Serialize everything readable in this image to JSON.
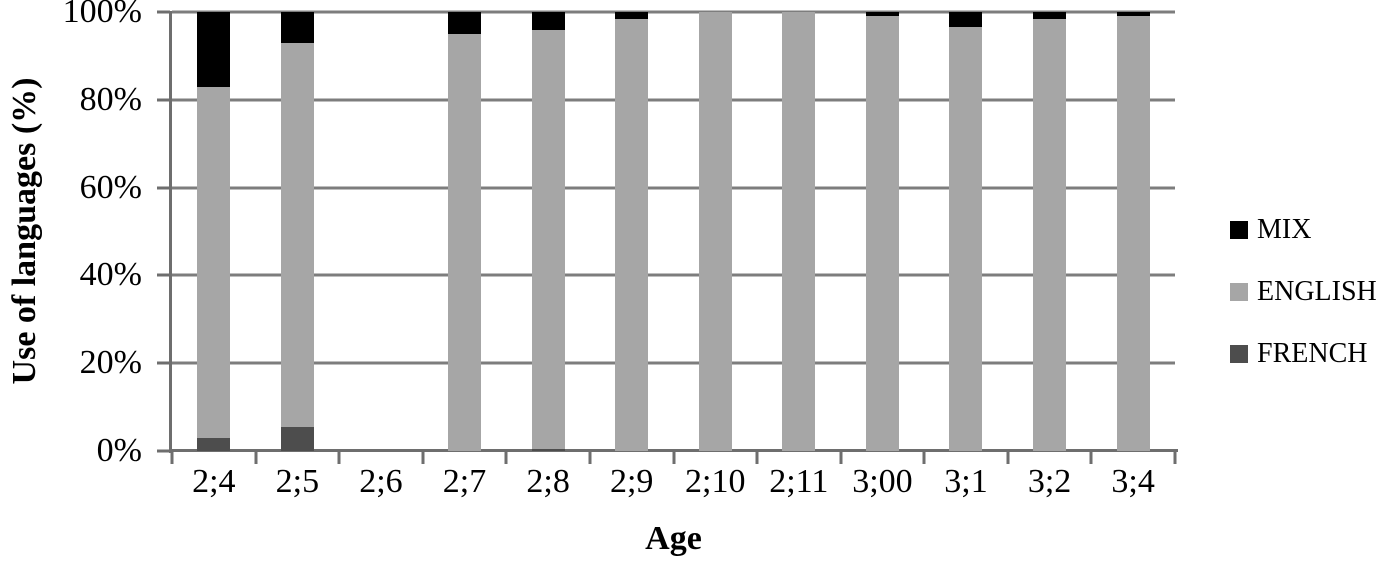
{
  "chart_data": {
    "type": "bar",
    "stacked": true,
    "title": "",
    "xlabel": "Age",
    "ylabel": "Use of languages (%)",
    "categories": [
      "2;4",
      "2;5",
      "2;6",
      "2;7",
      "2;8",
      "2;9",
      "2;10",
      "2;11",
      "3;00",
      "3;1",
      "3;2",
      "3;4"
    ],
    "series": [
      {
        "name": "MIX",
        "color": "#000000",
        "values": [
          17,
          7,
          0,
          5,
          4,
          1.5,
          0,
          0,
          1,
          3.5,
          1.5,
          1
        ]
      },
      {
        "name": "ENGLISH",
        "color": "#a6a6a6",
        "values": [
          80,
          87.5,
          0,
          95,
          95.5,
          98.5,
          100,
          100,
          99,
          96.5,
          98.5,
          99
        ]
      },
      {
        "name": "FRENCH",
        "color": "#4d4d4d",
        "values": [
          3,
          5.5,
          0,
          0,
          0.5,
          0,
          0,
          0,
          0,
          0,
          0,
          0
        ]
      }
    ],
    "stack_order_top_to_bottom": [
      "MIX",
      "ENGLISH",
      "FRENCH"
    ],
    "legend": [
      "MIX",
      "ENGLISH",
      "FRENCH"
    ],
    "legend_position": "right",
    "y_ticks": [
      "100%",
      "80%",
      "60%",
      "40%",
      "20%",
      "0%"
    ],
    "ylim": [
      0,
      100
    ],
    "grid": true
  },
  "colors": {
    "background": "#ffffff",
    "gridline": "#7d7d7d",
    "axis": "#6e6e6e",
    "text": "#000000"
  }
}
